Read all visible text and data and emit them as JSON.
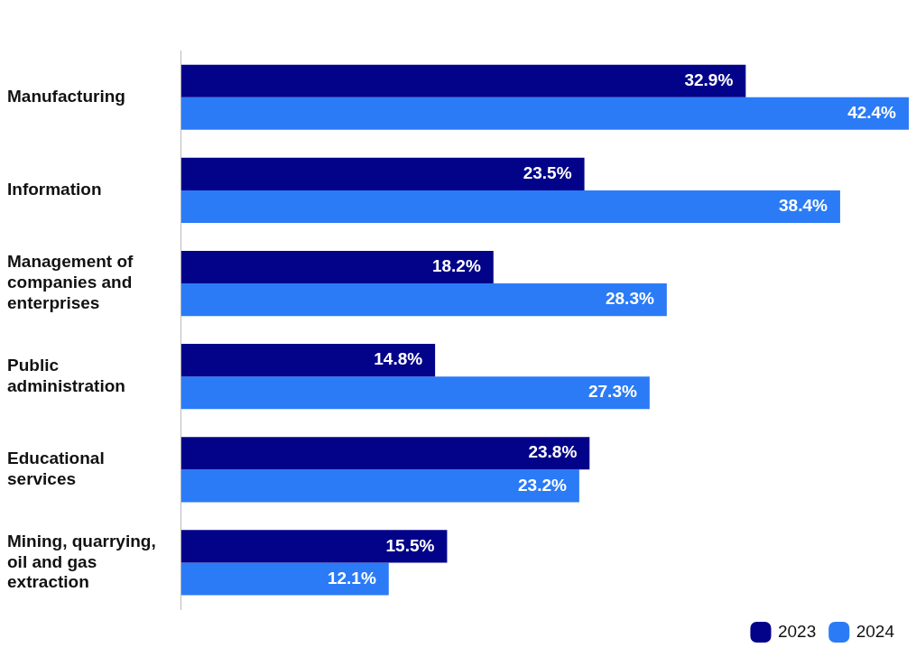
{
  "chart_data": {
    "type": "bar",
    "orientation": "horizontal",
    "categories": [
      "Manufacturing",
      "Information",
      "Management of companies and enterprises",
      "Public administration",
      "Educational services",
      "Mining, quarrying, oil and gas extraction"
    ],
    "series": [
      {
        "name": "2023",
        "color": "#03038a",
        "values": [
          32.9,
          23.5,
          18.2,
          14.8,
          23.8,
          15.5
        ],
        "value_labels": [
          "32.9%",
          "23.5%",
          "18.2%",
          "14.8%",
          "23.8%",
          "15.5%"
        ]
      },
      {
        "name": "2024",
        "color": "#2b7bf7",
        "values": [
          42.4,
          38.4,
          28.3,
          27.3,
          23.2,
          12.1
        ],
        "value_labels": [
          "42.4%",
          "38.4%",
          "28.3%",
          "27.3%",
          "23.2%",
          "12.1%"
        ]
      }
    ],
    "grid": false,
    "legend": "bottom right"
  }
}
